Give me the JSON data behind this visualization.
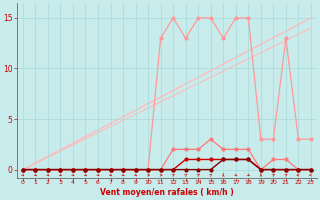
{
  "xlabel": "Vent moyen/en rafales ( km/h )",
  "background_color": "#c8ecec",
  "grid_color": "#aad8d8",
  "x_ticks": [
    0,
    1,
    2,
    3,
    4,
    5,
    6,
    7,
    8,
    9,
    10,
    11,
    12,
    13,
    14,
    15,
    16,
    17,
    18,
    19,
    20,
    21,
    22,
    23
  ],
  "xlim": [
    -0.5,
    23.5
  ],
  "ylim": [
    -0.8,
    16.5
  ],
  "y_ticks": [
    0,
    5,
    10,
    15
  ],
  "diag1": {
    "x": [
      0,
      23
    ],
    "y": [
      0,
      15
    ],
    "color": "#ffbbbb",
    "lw": 1.0
  },
  "diag2": {
    "x": [
      0,
      23
    ],
    "y": [
      0,
      14
    ],
    "color": "#ffbbbb",
    "lw": 0.8
  },
  "series_rafales": {
    "x": [
      0,
      1,
      2,
      3,
      4,
      5,
      6,
      7,
      8,
      9,
      10,
      11,
      12,
      13,
      14,
      15,
      16,
      17,
      18,
      19,
      20,
      21,
      22,
      23
    ],
    "y": [
      0,
      0,
      0,
      0,
      0,
      0,
      0,
      0,
      0,
      0,
      0,
      13,
      15,
      13,
      15,
      15,
      13,
      15,
      15,
      3,
      3,
      13,
      3,
      3
    ],
    "color": "#ff9999",
    "marker": "o",
    "markersize": 2,
    "lw": 0.9
  },
  "series_moyen_light": {
    "x": [
      0,
      1,
      2,
      3,
      4,
      5,
      6,
      7,
      8,
      9,
      10,
      11,
      12,
      13,
      14,
      15,
      16,
      17,
      18,
      19,
      20,
      21,
      22,
      23
    ],
    "y": [
      0,
      0,
      0,
      0,
      0,
      0,
      0,
      0,
      0,
      0,
      0,
      0,
      2,
      2,
      2,
      3,
      2,
      2,
      2,
      0,
      1,
      1,
      0,
      0
    ],
    "color": "#ff7777",
    "marker": "o",
    "markersize": 2,
    "lw": 0.9
  },
  "series_moyen_dark": {
    "x": [
      0,
      1,
      2,
      3,
      4,
      5,
      6,
      7,
      8,
      9,
      10,
      11,
      12,
      13,
      14,
      15,
      16,
      17,
      18,
      19,
      20,
      21,
      22,
      23
    ],
    "y": [
      0,
      0,
      0,
      0,
      0,
      0,
      0,
      0,
      0,
      0,
      0,
      0,
      0,
      1,
      1,
      1,
      1,
      1,
      1,
      0,
      0,
      0,
      0,
      0
    ],
    "color": "#cc0000",
    "marker": "o",
    "markersize": 2,
    "lw": 1.0
  },
  "series_darkest": {
    "x": [
      0,
      1,
      2,
      3,
      4,
      5,
      6,
      7,
      8,
      9,
      10,
      11,
      12,
      13,
      14,
      15,
      16,
      17,
      18,
      19,
      20,
      21,
      22,
      23
    ],
    "y": [
      0,
      0,
      0,
      0,
      0,
      0,
      0,
      0,
      0,
      0,
      0,
      0,
      0,
      0,
      0,
      0,
      1,
      1,
      1,
      0,
      0,
      0,
      0,
      0
    ],
    "color": "#880000",
    "marker": "o",
    "markersize": 2,
    "lw": 1.0
  },
  "wind_arrows": {
    "x": [
      0,
      1,
      2,
      3,
      4,
      5,
      6,
      7,
      8,
      9,
      10,
      11,
      12,
      13,
      14,
      15,
      16,
      17,
      18,
      19,
      20,
      21,
      22,
      23
    ],
    "angles": [
      45,
      45,
      45,
      45,
      45,
      45,
      45,
      45,
      45,
      45,
      90,
      90,
      135,
      135,
      135,
      135,
      180,
      45,
      45,
      180,
      135,
      135,
      270,
      270
    ]
  }
}
